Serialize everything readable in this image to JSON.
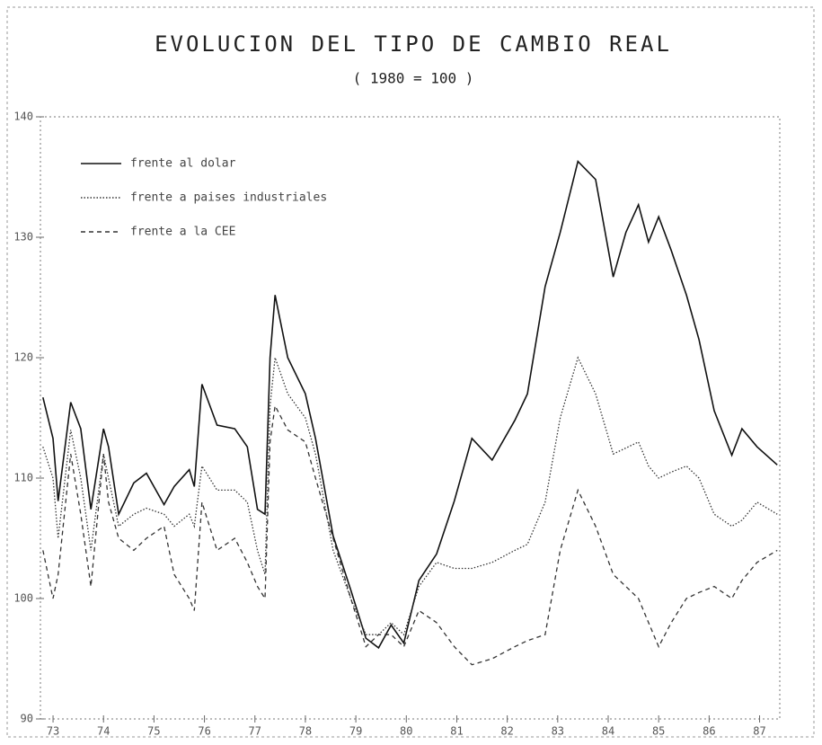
{
  "chart_data": {
    "type": "line",
    "title": "EVOLUCION DEL TIPO DE CAMBIO REAL",
    "subtitle": "( 1980 = 100 )",
    "x": [
      72.8,
      73.0,
      73.1,
      73.35,
      73.55,
      73.75,
      74.0,
      74.1,
      74.3,
      74.6,
      74.85,
      75.2,
      75.4,
      75.7,
      75.8,
      75.95,
      76.25,
      76.6,
      76.85,
      77.05,
      77.2,
      77.3,
      77.4,
      77.65,
      78.0,
      78.2,
      78.55,
      78.9,
      79.2,
      79.45,
      79.7,
      79.95,
      80.25,
      80.6,
      80.95,
      81.3,
      81.7,
      82.15,
      82.4,
      82.75,
      83.05,
      83.4,
      83.75,
      84.1,
      84.35,
      84.6,
      84.8,
      85.0,
      85.25,
      85.55,
      85.8,
      86.1,
      86.45,
      86.65,
      86.95,
      87.35
    ],
    "series": [
      {
        "name": "frente al dolar",
        "color": "#111111",
        "style": "solid",
        "values": [
          116.7,
          113.3,
          108.1,
          116.3,
          114.1,
          107.4,
          114.1,
          112.6,
          107.0,
          109.6,
          110.4,
          107.8,
          109.3,
          110.7,
          109.3,
          117.8,
          114.4,
          114.1,
          112.6,
          107.4,
          107.0,
          120.0,
          125.2,
          120.0,
          117.0,
          113.3,
          105.2,
          100.7,
          96.7,
          95.9,
          97.8,
          96.3,
          101.5,
          103.7,
          108.1,
          113.3,
          111.5,
          114.8,
          117.0,
          125.9,
          130.4,
          136.3,
          134.8,
          126.7,
          130.4,
          132.7,
          129.6,
          131.7,
          128.9,
          125.2,
          121.5,
          115.6,
          111.9,
          114.1,
          112.6,
          111.1
        ]
      },
      {
        "name": "frente a paises industriales",
        "color": "#333333",
        "style": "dotted",
        "values": [
          112.6,
          110,
          105,
          114,
          110,
          104,
          112,
          110,
          106,
          107,
          107.5,
          107,
          106,
          107,
          106,
          111,
          109,
          109,
          108,
          104,
          102,
          116,
          120,
          117,
          115,
          112,
          104,
          100,
          97,
          97,
          98,
          97,
          101,
          103,
          102.5,
          102.5,
          103,
          104,
          104.5,
          108,
          115,
          120,
          117,
          112,
          112.5,
          113,
          111,
          110,
          110.5,
          111,
          110,
          107,
          106,
          106.5,
          108,
          107
        ]
      },
      {
        "name": "frente a la CEE",
        "color": "#333333",
        "style": "dashed",
        "values": [
          104,
          100,
          102,
          112,
          107,
          101,
          112,
          108,
          105,
          104,
          105,
          106,
          102,
          100,
          99,
          108,
          104,
          105,
          103,
          101,
          100,
          113,
          116,
          114,
          113,
          110,
          105,
          100,
          96,
          97,
          97,
          96,
          99,
          98,
          96,
          94.5,
          95,
          96,
          96.5,
          97,
          104,
          109,
          106,
          102,
          101,
          100,
          98,
          96,
          98,
          100,
          100.5,
          101,
          100,
          101.5,
          103,
          104
        ]
      }
    ],
    "xlim": [
      72.75,
      87.4
    ],
    "xticks": [
      73,
      74,
      75,
      76,
      77,
      78,
      79,
      80,
      81,
      82,
      83,
      84,
      85,
      86,
      87
    ],
    "ylim": [
      90,
      140
    ],
    "yticks": [
      90,
      100,
      110,
      120,
      130,
      140
    ]
  }
}
